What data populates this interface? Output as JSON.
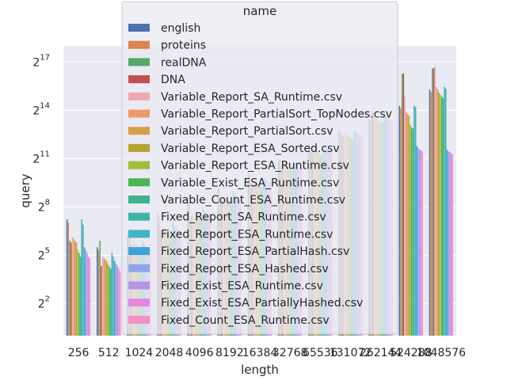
{
  "chart_data": {
    "type": "bar",
    "title": "",
    "xlabel": "length",
    "ylabel": "query",
    "y_scale": "log2",
    "ylim_exponent": [
      0,
      18
    ],
    "y_ticks": [
      {
        "base": "2",
        "exp": "2",
        "value": 4
      },
      {
        "base": "2",
        "exp": "5",
        "value": 32
      },
      {
        "base": "2",
        "exp": "8",
        "value": 256
      },
      {
        "base": "2",
        "exp": "11",
        "value": 2048
      },
      {
        "base": "2",
        "exp": "14",
        "value": 16384
      },
      {
        "base": "2",
        "exp": "17",
        "value": 131072
      }
    ],
    "grid": true,
    "legend_title": "name",
    "legend_placement": "top-center",
    "categories": [
      "256",
      "512",
      "1024",
      "2048",
      "4096",
      "8192",
      "16384",
      "32768",
      "65536",
      "131072",
      "262144",
      "524288",
      "1048576"
    ],
    "series": [
      {
        "name": "english",
        "color": "#4c72b0",
        "values": [
          150,
          45,
          80,
          190,
          320,
          600,
          1100,
          2000,
          3800,
          7000,
          11000,
          20000,
          40000
        ]
      },
      {
        "name": "proteins",
        "color": "#dd8452",
        "values": [
          130,
          40,
          70,
          170,
          300,
          560,
          1000,
          1900,
          3600,
          6600,
          10500,
          18000,
          36000
        ]
      },
      {
        "name": "realDNA",
        "color": "#55a868",
        "values": [
          60,
          60,
          70,
          100,
          180,
          350,
          700,
          1400,
          2800,
          5600,
          16000,
          80000,
          100000
        ]
      },
      {
        "name": "DNA",
        "color": "#c44e52",
        "values": [
          55,
          20,
          50,
          90,
          170,
          330,
          650,
          1300,
          2600,
          5200,
          15000,
          80000,
          100000
        ]
      },
      {
        "name": "Variable_Report_SA_Runtime.csv",
        "color": "#f0a8b4",
        "values": [
          70,
          30,
          60,
          110,
          200,
          380,
          750,
          1500,
          3000,
          6000,
          12000,
          30000,
          110000
        ]
      },
      {
        "name": "Variable_Report_PartialSort_TopNodes.csv",
        "color": "#ee9a6a",
        "values": [
          65,
          28,
          55,
          105,
          190,
          370,
          720,
          1450,
          2900,
          5800,
          11500,
          15000,
          45000
        ]
      },
      {
        "name": "Variable_Report_PartialSort.csv",
        "color": "#d8a04a",
        "values": [
          60,
          27,
          52,
          100,
          185,
          360,
          700,
          1400,
          2800,
          5600,
          11000,
          14000,
          40000
        ]
      },
      {
        "name": "Variable_Report_ESA_Sorted.csv",
        "color": "#b5a433",
        "values": [
          55,
          25,
          50,
          95,
          180,
          350,
          680,
          1350,
          2700,
          5400,
          10800,
          13000,
          35000
        ]
      },
      {
        "name": "Variable_Report_ESA_Runtime.csv",
        "color": "#9fbf3b",
        "values": [
          40,
          22,
          45,
          90,
          170,
          330,
          650,
          1300,
          2600,
          5200,
          10000,
          9000,
          32000
        ]
      },
      {
        "name": "Variable_Exist_ESA_Runtime.csv",
        "color": "#4ab554",
        "values": [
          35,
          20,
          42,
          85,
          160,
          320,
          630,
          1250,
          2500,
          5000,
          9800,
          8000,
          30000
        ]
      },
      {
        "name": "Variable_Count_ESA_Runtime.csv",
        "color": "#3fb38e",
        "values": [
          30,
          18,
          40,
          80,
          150,
          300,
          600,
          1200,
          2400,
          4800,
          9500,
          7500,
          28000
        ]
      },
      {
        "name": "Fixed_Report_SA_Runtime.csv",
        "color": "#3bb5a8",
        "values": [
          150,
          35,
          60,
          130,
          250,
          500,
          900,
          1800,
          3500,
          7000,
          14000,
          20000,
          45000
        ]
      },
      {
        "name": "Fixed_Report_ESA_Runtime.csv",
        "color": "#44b3c2",
        "values": [
          120,
          30,
          55,
          120,
          230,
          460,
          880,
          1700,
          3300,
          6500,
          13000,
          19000,
          42000
        ]
      },
      {
        "name": "Fixed_Report_ESA_PartialHash.csv",
        "color": "#40a4d6",
        "values": [
          45,
          25,
          50,
          110,
          210,
          420,
          820,
          1600,
          3100,
          6200,
          12000,
          3500,
          3000
        ]
      },
      {
        "name": "Fixed_Report_ESA_Hashed.csv",
        "color": "#8fa5e8",
        "values": [
          40,
          22,
          45,
          100,
          200,
          400,
          780,
          1550,
          3000,
          6000,
          11500,
          3200,
          2800
        ]
      },
      {
        "name": "Fixed_Exist_ESA_Runtime.csv",
        "color": "#b596e6",
        "values": [
          35,
          20,
          42,
          95,
          190,
          380,
          750,
          1500,
          2900,
          5800,
          11000,
          3000,
          2700
        ]
      },
      {
        "name": "Fixed_Exist_ESA_PartiallyHashed.csv",
        "color": "#e486e0",
        "values": [
          30,
          18,
          40,
          90,
          180,
          360,
          720,
          1450,
          2800,
          5600,
          10500,
          2900,
          2600
        ]
      },
      {
        "name": "Fixed_Count_ESA_Runtime.csv",
        "color": "#f090c4",
        "values": [
          28,
          16,
          38,
          85,
          170,
          340,
          700,
          1400,
          2700,
          5400,
          10000,
          2800,
          2500
        ]
      }
    ]
  }
}
